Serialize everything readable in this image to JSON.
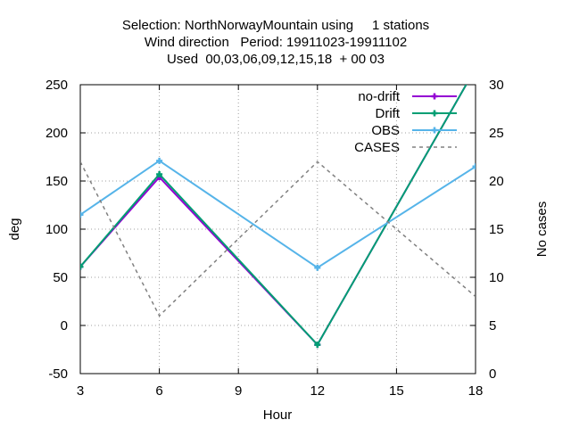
{
  "chart_data": {
    "type": "line",
    "title_lines": [
      "Selection: NorthNorwayMountain using     1 stations",
      "Wind direction   Period: 19911023-19911102",
      "Used  00,03,06,09,12,15,18  + 00 03"
    ],
    "xlabel": "Hour",
    "ylabel": "deg",
    "y2label": "No cases",
    "x": [
      3,
      6,
      12,
      18
    ],
    "xlim": [
      3,
      18
    ],
    "xticks": [
      3,
      6,
      9,
      12,
      15,
      18
    ],
    "ylim": [
      -50,
      250
    ],
    "yticks": [
      -50,
      0,
      50,
      100,
      150,
      200,
      250
    ],
    "y2lim": [
      0,
      30
    ],
    "y2ticks": [
      0,
      5,
      10,
      15,
      20,
      25,
      30
    ],
    "grid": true,
    "legend_position": "top-right",
    "series": [
      {
        "name": "no-drift",
        "axis": "y1",
        "color": "#9400d3",
        "style": "solid",
        "marker": "plus",
        "values": [
          61,
          154,
          -20,
          267
        ]
      },
      {
        "name": "Drift",
        "axis": "y1",
        "color": "#009e73",
        "style": "solid",
        "marker": "plus",
        "values": [
          61,
          157,
          -20,
          267
        ]
      },
      {
        "name": "OBS",
        "axis": "y1",
        "color": "#56b4e9",
        "style": "solid",
        "marker": "plus",
        "values": [
          115,
          171,
          60,
          165
        ]
      },
      {
        "name": "CASES",
        "axis": "y2",
        "color": "#808080",
        "style": "dashed",
        "marker": "none",
        "values": [
          22,
          6,
          22,
          8
        ]
      }
    ]
  }
}
